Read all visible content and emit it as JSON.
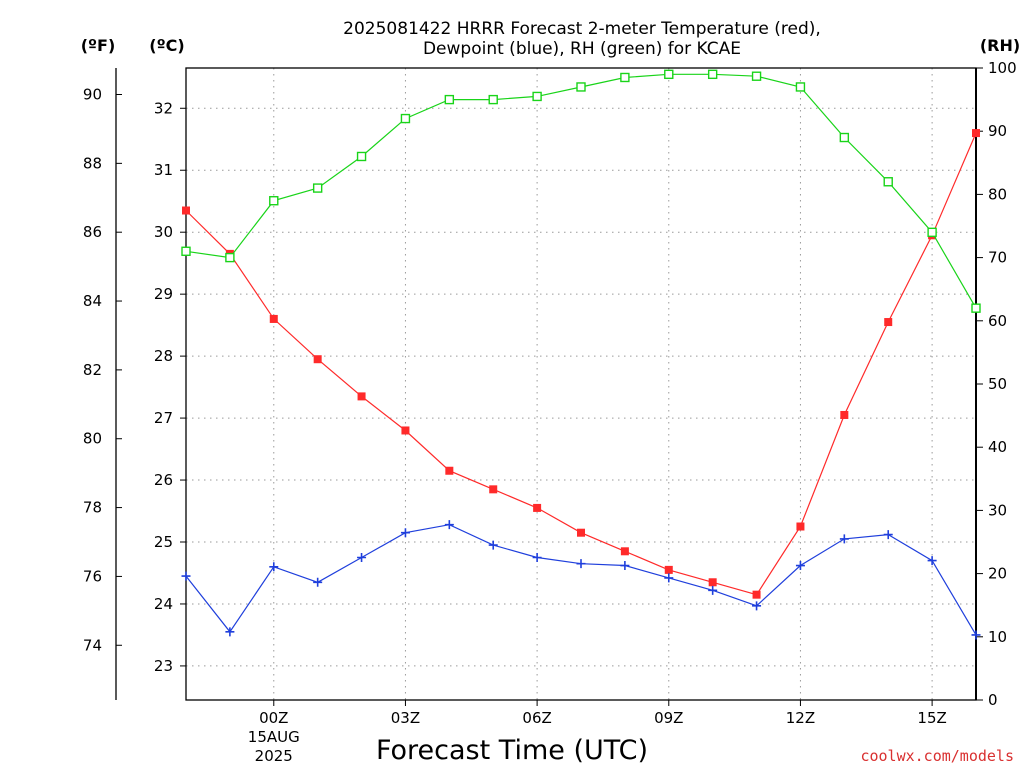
{
  "chart_data": {
    "type": "line",
    "title": "2025081422 HRRR Forecast 2-meter Temperature (red),",
    "subtitle": "Dewpoint (blue), RH (green) for KCAE",
    "xlabel": "Forecast Time (UTC)",
    "credit": "coolwx.com/models",
    "units": {
      "fahrenheit": "(ºF)",
      "celsius": "(ºC)",
      "rh": "(RH)"
    },
    "x_hours": [
      22,
      23,
      24,
      25,
      26,
      27,
      28,
      29,
      30,
      31,
      32,
      33,
      34,
      35,
      36,
      37,
      38,
      39,
      40
    ],
    "xlim": [
      22,
      40
    ],
    "x_ticks": [
      {
        "hour": 24,
        "label": "00Z",
        "date_lines": [
          "15AUG",
          "2025"
        ]
      },
      {
        "hour": 27,
        "label": "03Z"
      },
      {
        "hour": 30,
        "label": "06Z"
      },
      {
        "hour": 33,
        "label": "09Z"
      },
      {
        "hour": 36,
        "label": "12Z"
      },
      {
        "hour": 39,
        "label": "15Z"
      }
    ],
    "celsius_axis": {
      "ylim": [
        22.45,
        32.65
      ],
      "ticks": [
        23,
        24,
        25,
        26,
        27,
        28,
        29,
        30,
        31,
        32
      ]
    },
    "fahrenheit_axis": {
      "ylim": [
        72.41,
        90.77
      ],
      "ticks": [
        74,
        76,
        78,
        80,
        82,
        84,
        86,
        88,
        90
      ]
    },
    "rh_axis": {
      "ylim": [
        0,
        100
      ],
      "ticks": [
        0,
        10,
        20,
        30,
        40,
        50,
        60,
        70,
        80,
        90,
        100
      ]
    },
    "grid": true,
    "colors": {
      "temperature": "#ff2a2a",
      "dewpoint": "#1f3fdc",
      "rh": "#19d419"
    },
    "series": [
      {
        "axis": "celsius",
        "marker": "filled-square",
        "color": "#ff2a2a",
        "values": [
          30.35,
          29.65,
          28.6,
          27.95,
          27.35,
          26.8,
          26.15,
          25.85,
          25.55,
          25.15,
          24.85,
          24.55,
          24.35,
          24.15,
          25.25,
          27.05,
          28.55,
          29.95,
          31.6
        ]
      },
      {
        "axis": "celsius",
        "marker": "plus",
        "color": "#1f3fdc",
        "values": [
          24.45,
          23.55,
          24.6,
          24.35,
          24.75,
          25.15,
          25.28,
          24.95,
          24.75,
          24.65,
          24.62,
          24.42,
          24.22,
          23.97,
          24.62,
          25.05,
          25.12,
          24.7,
          23.5
        ]
      },
      {
        "axis": "rh",
        "marker": "open-square",
        "color": "#19d419",
        "values": [
          71,
          70,
          79,
          81,
          86,
          92,
          95,
          95,
          95.5,
          97,
          98.5,
          99,
          99,
          98.7,
          97,
          89,
          82,
          74,
          62
        ]
      }
    ]
  }
}
